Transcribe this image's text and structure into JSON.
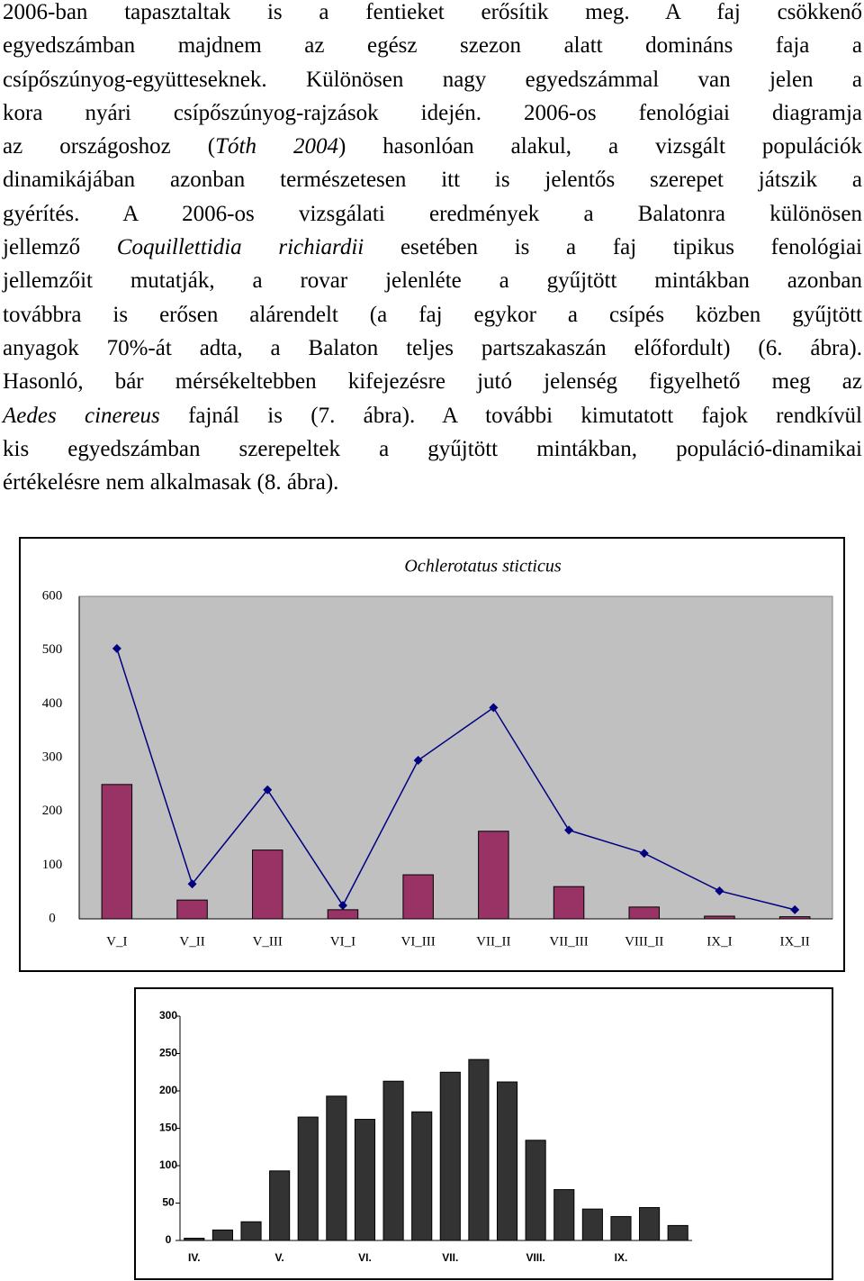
{
  "text_lines": [
    [
      "2006-ban tapasztaltak is a fentieket erősítik meg. A faj csökkenő"
    ],
    [
      "egyedszámban majdnem az egész szezon alatt domináns faja a"
    ],
    [
      "csípőszúnyog-együtteseknek. Különösen nagy egyedszámmal van jelen a"
    ],
    [
      "kora nyári csípőszúnyog-rajzások idején. 2006-os fenológiai diagramja"
    ],
    [
      "az országoshoz (",
      "Tóth 2004",
      ") hasonlóan alakul, a vizsgált populációk"
    ],
    [
      "dinamikájában azonban természetesen itt is jelentős szerepet játszik a"
    ],
    [
      "gyérítés. A 2006-os vizsgálati eredmények a Balatonra különösen"
    ],
    [
      "jellemző ",
      "Coquillettidia richiardii",
      " esetében is a faj tipikus fenológiai"
    ],
    [
      "jellemzőit mutatják, a rovar jelenléte a gyűjtött mintákban azonban"
    ],
    [
      "továbbra is erősen alárendelt (a faj egykor a csípés közben gyűjtött"
    ],
    [
      "anyagok 70%-át adta, a Balaton teljes partszakaszán előfordult) (6. ábra)."
    ],
    [
      "Hasonló, bár mérsékeltebben kifejezésre jutó jelenség figyelhető meg az"
    ],
    [
      "Aedes cinereus",
      " fajnál is (7. ábra). A további kimutatott fajok rendkívül"
    ],
    [
      "kis egyedszámban szerepeltek a gyűjtött mintákban, populáció-dinamikai"
    ],
    [
      "értékelésre nem alkalmasak (8. ábra)."
    ]
  ],
  "chart_data": [
    {
      "type": "bar",
      "title": "Ochlerotatus sticticus",
      "categories": [
        "V_I",
        "V_II",
        "V_III",
        "VI_I",
        "VI_III",
        "VII_II",
        "VII_III",
        "VIII_II",
        "IX_I",
        "IX_II"
      ],
      "series": [
        {
          "type": "bar",
          "color": "#993366",
          "values": [
            250,
            35,
            128,
            17,
            82,
            163,
            60,
            22,
            5,
            4
          ]
        },
        {
          "type": "line",
          "color": "#000080",
          "values": [
            503,
            65,
            240,
            25,
            295,
            393,
            165,
            122,
            52,
            17
          ]
        }
      ],
      "ylim": [
        0,
        600
      ],
      "yticks": [
        0,
        100,
        200,
        300,
        400,
        500,
        600
      ],
      "plot_background": "#c0c0c0"
    },
    {
      "type": "bar",
      "categories": [
        "IV.",
        null,
        null,
        "V.",
        null,
        null,
        "VI.",
        null,
        null,
        "VII.",
        null,
        null,
        "VIII.",
        null,
        null,
        "IX.",
        null,
        null
      ],
      "series": [
        {
          "type": "bar",
          "color": "#333333",
          "values": [
            3,
            14,
            25,
            93,
            165,
            193,
            162,
            213,
            172,
            225,
            242,
            212,
            134,
            68,
            42,
            32,
            44,
            20
          ]
        }
      ],
      "ylim": [
        0,
        300
      ],
      "yticks": [
        0,
        50,
        100,
        150,
        200,
        250,
        300
      ],
      "plot_background": "#ffffff"
    }
  ]
}
